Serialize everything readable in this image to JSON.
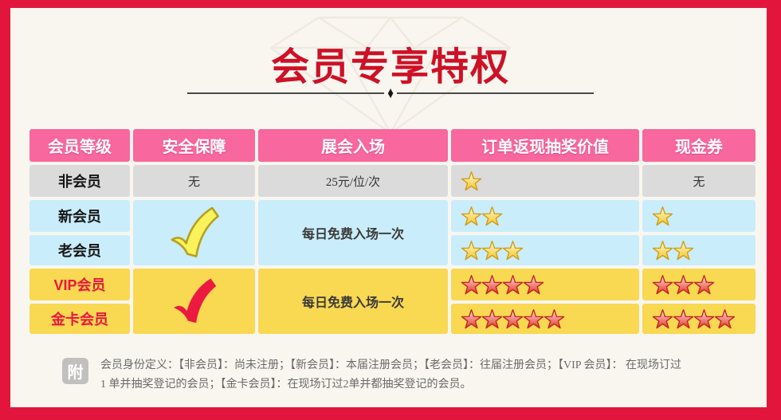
{
  "title": "会员专享特权",
  "divider_diamond": "♦",
  "table": {
    "headers": {
      "level": "会员等级",
      "security": "安全保障",
      "entry": "展会入场",
      "lottery": "订单返现抽奖价值",
      "voucher": "现金券"
    },
    "rows": [
      {
        "level": "非会员",
        "security": "无",
        "entry": "25元/位/次",
        "lottery_stars": 1,
        "voucher_text": "无",
        "voucher_stars": 0
      },
      {
        "level": "新会员",
        "lottery_stars": 2,
        "voucher_stars": 1
      },
      {
        "level": "老会员",
        "lottery_stars": 3,
        "voucher_stars": 2
      },
      {
        "level": "VIP会员",
        "lottery_stars": 4,
        "voucher_stars": 3
      },
      {
        "level": "金卡会员",
        "lottery_stars": 5,
        "voucher_stars": 4
      }
    ],
    "merged": {
      "member_security_check": "yellow-check",
      "member_entry": "每日免费入场一次",
      "vip_security_check": "red-check",
      "vip_entry": "每日免费入场一次"
    }
  },
  "footer": {
    "badge": "附",
    "line1": "会员身份定义：【非会员】：尚未注册；【新会员】：本届注册会员；【老会员】：往届注册会员；【VIP 会员】： 在现场订过",
    "line2": "1 单并抽奖登记的会员；【金卡会员】：在现场订过2单并都抽奖登记的会员。"
  },
  "colors": {
    "frame_red": "#E2163C",
    "title_red": "#CD1126",
    "header_pink": "#F8679E",
    "row_gray": "#DBDBDB",
    "row_blue": "#C9EDFB",
    "row_yellow": "#F9D852",
    "vip_text_red": "#E8173F",
    "yellow_star": "#F3C527",
    "red_star": "#E33A31",
    "background": "#F9F6F0"
  }
}
